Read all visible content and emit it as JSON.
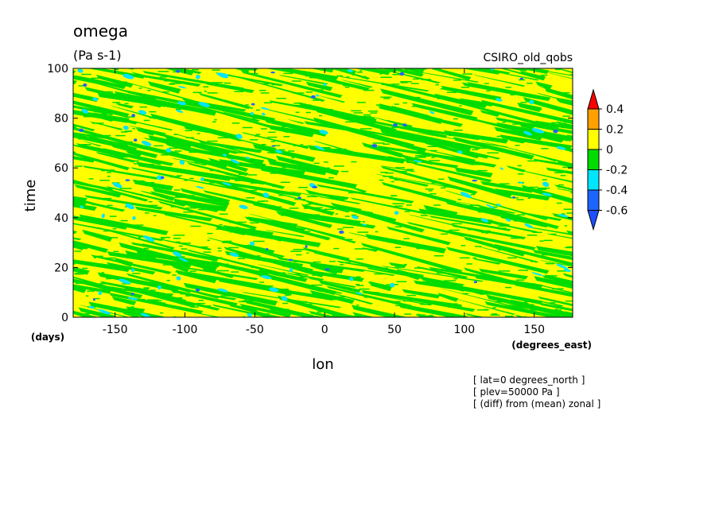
{
  "chart_data": {
    "type": "heatmap",
    "title": "omega",
    "subtitle": "(Pa s-1)",
    "model_label": "CSIRO_old_qobs",
    "xlabel": "lon",
    "xunits": "(degrees_east)",
    "ylabel": "time",
    "yunits": "(days)",
    "xlim": [
      -180,
      177.5
    ],
    "ylim": [
      0,
      100
    ],
    "xticks": [
      -150,
      -100,
      -50,
      0,
      50,
      100,
      150
    ],
    "yticks": [
      0,
      20,
      40,
      60,
      80,
      100
    ],
    "xtick_labels": [
      "-150",
      "-100",
      "-50",
      "0",
      "50",
      "100",
      "150"
    ],
    "ytick_labels": [
      "0",
      "20",
      "40",
      "60",
      "80",
      "100"
    ],
    "colorbar": {
      "levels": [
        -0.6,
        -0.4,
        -0.2,
        0,
        0.2,
        0.4
      ],
      "labels": [
        "0.4",
        "0.2",
        "0",
        "-0.2",
        "-0.4",
        "-0.6"
      ],
      "colors": [
        "#1e64ff",
        "#00e6ff",
        "#00dc00",
        "#ffff00",
        "#ffa000",
        "#ff0000"
      ],
      "extend": "both"
    },
    "annotations": [
      "[ lat=0 degrees_north ]",
      "[ plev=50000 Pa ]",
      "[ (diff) from (mean) zonal ]"
    ],
    "field_description": "mostly yellow (0 to 0.2) with green streaks (-0.2 to 0) tilted eastward-down, scattered cyan/blue patches"
  }
}
